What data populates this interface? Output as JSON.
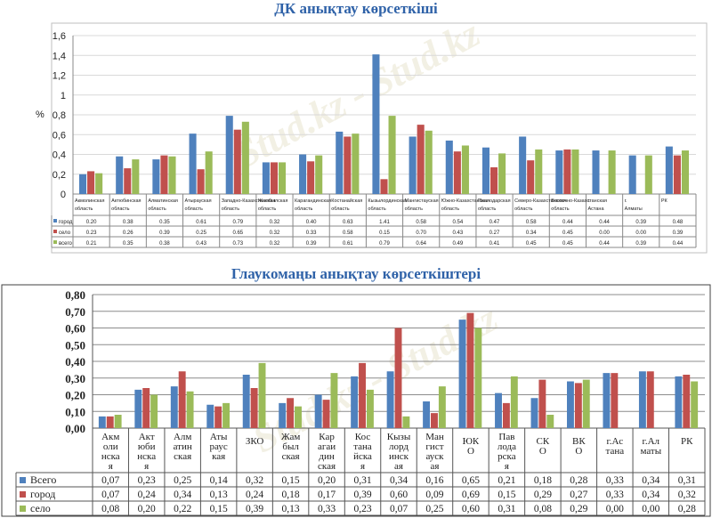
{
  "chart_data": [
    {
      "type": "bar",
      "title": "ДК анықтау көрсеткіші",
      "ylabel": "%",
      "ylim": [
        0,
        1.6
      ],
      "yticks": [
        "0",
        "0,2",
        "0,4",
        "0,6",
        "0,8",
        "1",
        "1,2",
        "1,4",
        "1,6"
      ],
      "grid": true,
      "legend": "table-below",
      "categories": [
        "Акмолинская область",
        "Актюбинская область",
        "Алматинская область",
        "Атырауская область",
        "Западно-Казахстанская область",
        "Жамбылская область",
        "Карагандинская область",
        "Костанайская область",
        "Кызылординская область",
        "Мангистауская область",
        "Южно-Казахстанская область",
        "Павлодарская область",
        "Северо-Казахстанская область",
        "Восточно-Казахстанская область",
        "г. Астана",
        "г. Алматы",
        "РК"
      ],
      "series": [
        {
          "name": "город",
          "color": "#4f81bd",
          "labels": [
            "0.20",
            "0.38",
            "0.35",
            "0.61",
            "0.79",
            "0.32",
            "0.40",
            "0.63",
            "1.41",
            "0.58",
            "0.54",
            "0.47",
            "0.58",
            "0.44",
            "0.44",
            "0.39",
            "0.48"
          ],
          "values": [
            0.2,
            0.38,
            0.35,
            0.61,
            0.79,
            0.32,
            0.4,
            0.63,
            1.41,
            0.58,
            0.54,
            0.47,
            0.58,
            0.44,
            0.44,
            0.39,
            0.48
          ]
        },
        {
          "name": "село",
          "color": "#c0504d",
          "labels": [
            "0.23",
            "0.26",
            "0.39",
            "0.25",
            "0.65",
            "0.32",
            "0.33",
            "0.58",
            "0.15",
            "0.70",
            "0.43",
            "0.27",
            "0.34",
            "0.45",
            "0.00",
            "0.00",
            "0.39"
          ],
          "values": [
            0.23,
            0.26,
            0.39,
            0.25,
            0.65,
            0.32,
            0.33,
            0.58,
            0.15,
            0.7,
            0.43,
            0.27,
            0.34,
            0.45,
            0.0,
            0.0,
            0.39
          ]
        },
        {
          "name": "всего",
          "color": "#9bbb59",
          "labels": [
            "0.21",
            "0.35",
            "0.38",
            "0.43",
            "0.73",
            "0.32",
            "0.39",
            "0.61",
            "0.79",
            "0.64",
            "0.49",
            "0.41",
            "0.45",
            "0.45",
            "0.44",
            "0.39",
            "0.44"
          ],
          "values": [
            0.21,
            0.35,
            0.38,
            0.43,
            0.73,
            0.32,
            0.39,
            0.61,
            0.79,
            0.64,
            0.49,
            0.41,
            0.45,
            0.45,
            0.44,
            0.39,
            0.44
          ]
        }
      ]
    },
    {
      "type": "bar",
      "title": "Глаукомаңы анықтау көрсеткіштері",
      "ylim": [
        0,
        0.8
      ],
      "yticks": [
        "0,00",
        "0,10",
        "0,20",
        "0,30",
        "0,40",
        "0,50",
        "0,60",
        "0,70",
        "0,80"
      ],
      "grid": true,
      "legend": "table-below",
      "categories": [
        "Акм оли нска я",
        "Акт юби нска я",
        "Алм атин ская",
        "Аты раус кая",
        "ЗКО",
        "Жам был ская",
        "Кар агаи дин ская",
        "Кос тана йска я",
        "Кызы лорд инск ая",
        "Ман гист ауск ая",
        "ЮК О",
        "Пав лода рска я",
        "СК О",
        "ВК О",
        "г.Ас тана",
        "г.Ал маты",
        "РК"
      ],
      "series": [
        {
          "name": "Всего",
          "color": "#4f81bd",
          "labels": [
            "0,07",
            "0,23",
            "0,25",
            "0,14",
            "0,32",
            "0,15",
            "0,20",
            "0,31",
            "0,34",
            "0,16",
            "0,65",
            "0,21",
            "0,18",
            "0,28",
            "0,33",
            "0,34",
            "0,31"
          ],
          "values": [
            0.07,
            0.23,
            0.25,
            0.14,
            0.32,
            0.15,
            0.2,
            0.31,
            0.34,
            0.16,
            0.65,
            0.21,
            0.18,
            0.28,
            0.33,
            0.34,
            0.31
          ]
        },
        {
          "name": "город",
          "color": "#c0504d",
          "labels": [
            "0,07",
            "0,24",
            "0,34",
            "0,13",
            "0,24",
            "0,18",
            "0,17",
            "0,39",
            "0,60",
            "0,09",
            "0,69",
            "0,15",
            "0,29",
            "0,27",
            "0,33",
            "0,34",
            "0,32"
          ],
          "values": [
            0.07,
            0.24,
            0.34,
            0.13,
            0.24,
            0.18,
            0.17,
            0.39,
            0.6,
            0.09,
            0.69,
            0.15,
            0.29,
            0.27,
            0.33,
            0.34,
            0.32
          ]
        },
        {
          "name": "село",
          "color": "#9bbb59",
          "labels": [
            "0,08",
            "0,20",
            "0,22",
            "0,15",
            "0,39",
            "0,13",
            "0,33",
            "0,23",
            "0,07",
            "0,25",
            "0,60",
            "0,31",
            "0,08",
            "0,29",
            "0,00",
            "0,00",
            "0,28"
          ],
          "values": [
            0.08,
            0.2,
            0.22,
            0.15,
            0.39,
            0.13,
            0.33,
            0.23,
            0.07,
            0.25,
            0.6,
            0.31,
            0.08,
            0.29,
            0.0,
            0.0,
            0.28
          ]
        }
      ]
    }
  ]
}
